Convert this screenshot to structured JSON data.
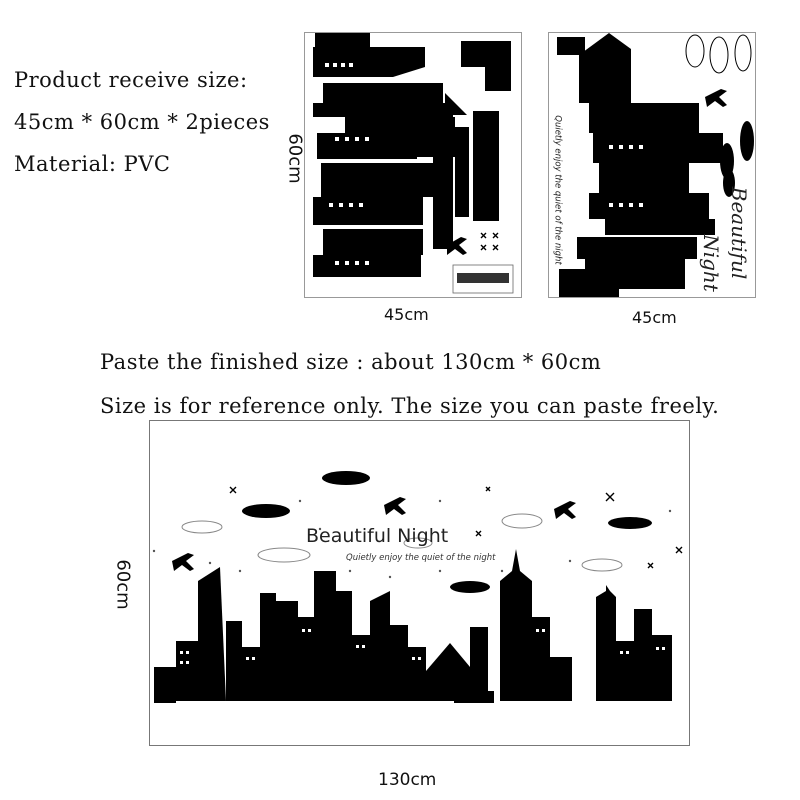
{
  "product": {
    "receive_size_label": "Product receive size:",
    "receive_size_value": "45cm * 60cm * 2pieces",
    "material": "Material: PVC"
  },
  "sheet_left": {
    "width_label": "45cm",
    "height_label": "60cm"
  },
  "sheet_right": {
    "width_label": "45cm",
    "script_title_1": "Beautiful",
    "script_title_2": "Night",
    "tagline": "Quietly enjoy the quiet of the night"
  },
  "notes": {
    "finished_size": "Paste the finished size : about 130cm * 60cm",
    "disclaimer": "Size is for reference only. The size you can paste freely."
  },
  "finished": {
    "width_label": "130cm",
    "height_label": "60cm",
    "title": "Beautiful Night",
    "tagline": "Quietly enjoy the quiet of the night"
  }
}
